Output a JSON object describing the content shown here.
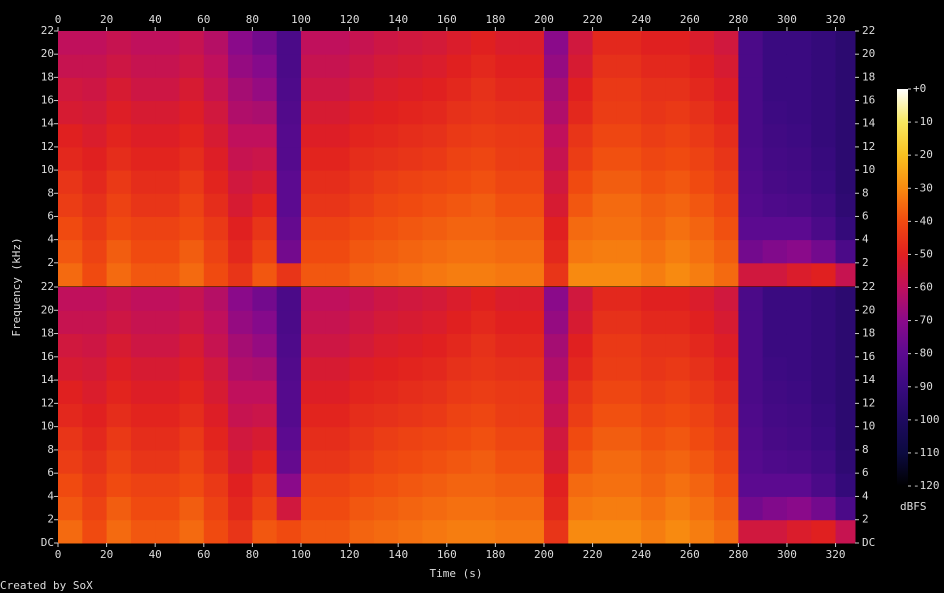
{
  "chart_data": {
    "type": "spectrogram",
    "x_label": "Time (s)",
    "y_label": "Frequency (kHz)",
    "footer": "Created by SoX",
    "xlim": [
      0,
      328
    ],
    "xticks": [
      0,
      20,
      40,
      60,
      80,
      100,
      120,
      140,
      160,
      180,
      200,
      220,
      240,
      260,
      280,
      300,
      320
    ],
    "ylim": [
      0,
      22
    ],
    "yticks_upper": [
      2,
      4,
      6,
      8,
      10,
      12,
      14,
      16,
      18,
      20,
      22
    ],
    "yticks_lower": [
      {
        "value": 0,
        "label": "DC"
      },
      2,
      4,
      6,
      8,
      10,
      12,
      14,
      16,
      18,
      20,
      22
    ],
    "time_bins": [
      0,
      10,
      20,
      30,
      40,
      50,
      60,
      70,
      80,
      90,
      100,
      110,
      120,
      130,
      140,
      150,
      160,
      170,
      180,
      190,
      200,
      210,
      220,
      230,
      240,
      250,
      260,
      270,
      280,
      290,
      300,
      310,
      320,
      328
    ],
    "freq_bins": [
      0,
      2,
      4,
      6,
      8,
      10,
      12,
      14,
      16,
      18,
      20,
      22
    ],
    "colorbar": {
      "label": "dBFS",
      "zlim": [
        -120,
        0
      ],
      "ticks": [
        {
          "value": 0,
          "label": "+0"
        },
        -10,
        -20,
        -30,
        -40,
        -50,
        -60,
        -70,
        -80,
        -90,
        -100,
        -110,
        -120
      ],
      "colors": [
        "#000000",
        "#0c0a40",
        "#1e0a60",
        "#3a0a80",
        "#5c0a90",
        "#8a0a8a",
        "#c0105c",
        "#e02020",
        "#f04a10",
        "#f88a10",
        "#f8c020",
        "#f8e860",
        "#ffffff"
      ]
    },
    "channels": [
      {
        "values": [
          [
            -35,
            -38,
            -40,
            -43,
            -45,
            -48,
            -50,
            -53,
            -55,
            -58,
            -60
          ],
          [
            -40,
            -42,
            -44,
            -46,
            -48,
            -50,
            -52,
            -54,
            -56,
            -58,
            -60
          ],
          [
            -35,
            -37,
            -40,
            -42,
            -44,
            -47,
            -49,
            -51,
            -53,
            -56,
            -58
          ],
          [
            -38,
            -40,
            -42,
            -45,
            -47,
            -49,
            -51,
            -53,
            -56,
            -58,
            -60
          ],
          [
            -38,
            -40,
            -42,
            -45,
            -47,
            -49,
            -51,
            -53,
            -56,
            -58,
            -60
          ],
          [
            -35,
            -37,
            -40,
            -42,
            -44,
            -47,
            -49,
            -51,
            -53,
            -56,
            -58
          ],
          [
            -40,
            -42,
            -44,
            -47,
            -49,
            -51,
            -53,
            -55,
            -58,
            -60,
            -62
          ],
          [
            -45,
            -48,
            -50,
            -53,
            -55,
            -58,
            -60,
            -63,
            -65,
            -68,
            -70
          ],
          [
            -38,
            -42,
            -45,
            -49,
            -53,
            -57,
            -60,
            -64,
            -68,
            -71,
            -75
          ],
          [
            -45,
            -75,
            -78,
            -80,
            -80,
            -82,
            -82,
            -83,
            -84,
            -85,
            -85
          ],
          [
            -38,
            -40,
            -42,
            -45,
            -47,
            -49,
            -51,
            -53,
            -56,
            -58,
            -60
          ],
          [
            -38,
            -40,
            -42,
            -45,
            -47,
            -49,
            -51,
            -53,
            -56,
            -58,
            -60
          ],
          [
            -36,
            -38,
            -40,
            -43,
            -45,
            -47,
            -49,
            -51,
            -54,
            -56,
            -58
          ],
          [
            -35,
            -37,
            -39,
            -41,
            -43,
            -46,
            -48,
            -50,
            -52,
            -54,
            -56
          ],
          [
            -34,
            -36,
            -38,
            -40,
            -42,
            -45,
            -47,
            -49,
            -51,
            -53,
            -55
          ],
          [
            -33,
            -35,
            -37,
            -39,
            -41,
            -44,
            -46,
            -48,
            -50,
            -52,
            -54
          ],
          [
            -32,
            -34,
            -36,
            -38,
            -40,
            -42,
            -44,
            -46,
            -48,
            -50,
            -52
          ],
          [
            -32,
            -34,
            -36,
            -37,
            -39,
            -41,
            -43,
            -45,
            -46,
            -48,
            -50
          ],
          [
            -33,
            -35,
            -37,
            -39,
            -41,
            -43,
            -44,
            -46,
            -48,
            -50,
            -52
          ],
          [
            -33,
            -35,
            -37,
            -39,
            -41,
            -43,
            -44,
            -46,
            -48,
            -50,
            -52
          ],
          [
            -45,
            -48,
            -50,
            -53,
            -55,
            -58,
            -60,
            -63,
            -65,
            -68,
            -70
          ],
          [
            -30,
            -33,
            -35,
            -38,
            -40,
            -43,
            -45,
            -48,
            -50,
            -53,
            -55
          ],
          [
            -30,
            -32,
            -34,
            -35,
            -37,
            -39,
            -41,
            -43,
            -44,
            -46,
            -48
          ],
          [
            -30,
            -32,
            -34,
            -35,
            -37,
            -39,
            -41,
            -43,
            -44,
            -46,
            -48
          ],
          [
            -32,
            -34,
            -36,
            -37,
            -39,
            -41,
            -43,
            -45,
            -46,
            -48,
            -50
          ],
          [
            -30,
            -32,
            -34,
            -36,
            -38,
            -40,
            -42,
            -44,
            -46,
            -48,
            -50
          ],
          [
            -32,
            -34,
            -36,
            -38,
            -40,
            -42,
            -44,
            -46,
            -48,
            -50,
            -52
          ],
          [
            -35,
            -37,
            -39,
            -41,
            -43,
            -45,
            -47,
            -49,
            -51,
            -53,
            -55
          ],
          [
            -55,
            -75,
            -80,
            -82,
            -83,
            -84,
            -85,
            -85,
            -85,
            -85,
            -85
          ],
          [
            -55,
            -72,
            -80,
            -84,
            -86,
            -87,
            -88,
            -89,
            -90,
            -90,
            -90
          ],
          [
            -52,
            -70,
            -80,
            -85,
            -87,
            -88,
            -89,
            -90,
            -90,
            -90,
            -90
          ],
          [
            -50,
            -75,
            -85,
            -88,
            -90,
            -91,
            -92,
            -92,
            -92,
            -92,
            -92
          ],
          [
            -58,
            -85,
            -92,
            -94,
            -95,
            -95,
            -95,
            -95,
            -95,
            -95,
            -95
          ]
        ]
      },
      {
        "values": [
          [
            -35,
            -38,
            -40,
            -43,
            -45,
            -48,
            -50,
            -53,
            -55,
            -58,
            -60
          ],
          [
            -40,
            -42,
            -44,
            -46,
            -48,
            -50,
            -52,
            -54,
            -56,
            -58,
            -60
          ],
          [
            -35,
            -37,
            -40,
            -42,
            -44,
            -47,
            -49,
            -51,
            -53,
            -56,
            -58
          ],
          [
            -38,
            -40,
            -42,
            -45,
            -47,
            -49,
            -51,
            -53,
            -56,
            -58,
            -60
          ],
          [
            -38,
            -40,
            -42,
            -45,
            -47,
            -49,
            -51,
            -53,
            -56,
            -58,
            -60
          ],
          [
            -35,
            -37,
            -40,
            -42,
            -44,
            -47,
            -49,
            -51,
            -53,
            -56,
            -58
          ],
          [
            -40,
            -42,
            -44,
            -47,
            -49,
            -51,
            -53,
            -55,
            -58,
            -60,
            -62
          ],
          [
            -45,
            -48,
            -50,
            -53,
            -55,
            -58,
            -60,
            -63,
            -65,
            -68,
            -70
          ],
          [
            -38,
            -42,
            -45,
            -49,
            -53,
            -57,
            -60,
            -64,
            -68,
            -71,
            -75
          ],
          [
            -40,
            -55,
            -70,
            -78,
            -80,
            -82,
            -82,
            -83,
            -84,
            -85,
            -85
          ],
          [
            -38,
            -40,
            -42,
            -45,
            -47,
            -49,
            -51,
            -53,
            -56,
            -58,
            -60
          ],
          [
            -38,
            -40,
            -42,
            -45,
            -47,
            -49,
            -51,
            -53,
            -56,
            -58,
            -60
          ],
          [
            -36,
            -38,
            -40,
            -43,
            -45,
            -47,
            -49,
            -51,
            -54,
            -56,
            -58
          ],
          [
            -35,
            -37,
            -39,
            -41,
            -43,
            -46,
            -48,
            -50,
            -52,
            -54,
            -56
          ],
          [
            -34,
            -36,
            -38,
            -40,
            -42,
            -45,
            -47,
            -49,
            -51,
            -53,
            -55
          ],
          [
            -33,
            -35,
            -37,
            -39,
            -41,
            -44,
            -46,
            -48,
            -50,
            -52,
            -54
          ],
          [
            -32,
            -34,
            -36,
            -38,
            -40,
            -42,
            -44,
            -46,
            -48,
            -50,
            -52
          ],
          [
            -32,
            -34,
            -36,
            -37,
            -39,
            -41,
            -43,
            -45,
            -46,
            -48,
            -50
          ],
          [
            -33,
            -35,
            -37,
            -39,
            -41,
            -43,
            -44,
            -46,
            -48,
            -50,
            -52
          ],
          [
            -33,
            -35,
            -37,
            -39,
            -41,
            -43,
            -44,
            -46,
            -48,
            -50,
            -52
          ],
          [
            -45,
            -48,
            -50,
            -53,
            -55,
            -58,
            -60,
            -63,
            -65,
            -68,
            -70
          ],
          [
            -30,
            -33,
            -35,
            -38,
            -40,
            -43,
            -45,
            -48,
            -50,
            -53,
            -55
          ],
          [
            -30,
            -32,
            -34,
            -35,
            -37,
            -39,
            -41,
            -43,
            -44,
            -46,
            -48
          ],
          [
            -30,
            -32,
            -34,
            -35,
            -37,
            -39,
            -41,
            -43,
            -44,
            -46,
            -48
          ],
          [
            -32,
            -34,
            -36,
            -37,
            -39,
            -41,
            -43,
            -45,
            -46,
            -48,
            -50
          ],
          [
            -30,
            -32,
            -34,
            -36,
            -38,
            -40,
            -42,
            -44,
            -46,
            -48,
            -50
          ],
          [
            -32,
            -34,
            -36,
            -38,
            -40,
            -42,
            -44,
            -46,
            -48,
            -50,
            -52
          ],
          [
            -35,
            -37,
            -39,
            -41,
            -43,
            -45,
            -47,
            -49,
            -51,
            -53,
            -55
          ],
          [
            -55,
            -75,
            -80,
            -82,
            -83,
            -84,
            -85,
            -85,
            -85,
            -85,
            -85
          ],
          [
            -55,
            -72,
            -80,
            -84,
            -86,
            -87,
            -88,
            -89,
            -90,
            -90,
            -90
          ],
          [
            -52,
            -70,
            -80,
            -85,
            -87,
            -88,
            -89,
            -90,
            -90,
            -90,
            -90
          ],
          [
            -50,
            -75,
            -85,
            -88,
            -90,
            -91,
            -92,
            -92,
            -92,
            -92,
            -92
          ],
          [
            -58,
            -85,
            -92,
            -94,
            -95,
            -95,
            -95,
            -95,
            -95,
            -95,
            -95
          ]
        ]
      }
    ]
  }
}
